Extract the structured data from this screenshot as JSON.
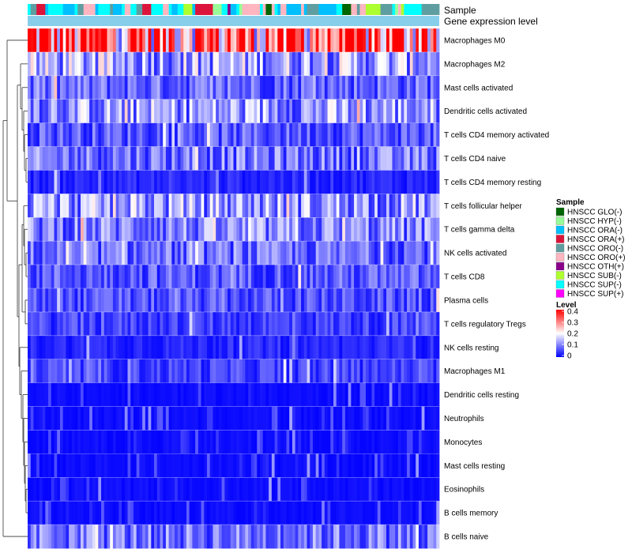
{
  "chart_data": {
    "type": "heatmap",
    "title": "",
    "n_samples": 140,
    "annotation_tracks": [
      "Sample",
      "Gene expression level"
    ],
    "rows": [
      "Macrophages M0",
      "Macrophages M2",
      "Mast cells activated",
      "Dendritic cells activated",
      "T cells CD4 memory activated",
      "T cells CD4 naive",
      "T cells CD4 memory resting",
      "T cells follicular helper",
      "T cells gamma delta",
      "NK cells activated",
      "T cells CD8",
      "Plasma cells",
      "T cells regulatory  Tregs",
      "NK cells resting",
      "Macrophages M1",
      "Dendritic cells resting",
      "Neutrophils",
      "Monocytes",
      "Mast cells resting",
      "Eosinophils",
      "B cells memory",
      "B cells naive"
    ],
    "row_mean_level": [
      0.32,
      0.13,
      0.08,
      0.12,
      0.07,
      0.09,
      0.03,
      0.12,
      0.1,
      0.08,
      0.07,
      0.06,
      0.05,
      0.03,
      0.05,
      0.01,
      0.01,
      0.01,
      0.01,
      0.01,
      0.01,
      0.09
    ],
    "color_scale": {
      "range": [
        0,
        0.4
      ],
      "ticks": [
        0,
        0.1,
        0.2,
        0.3,
        0.4
      ],
      "colors": [
        "#0000ff",
        "#ffffff",
        "#ff0000"
      ]
    },
    "legend_sample": {
      "title": "Sample",
      "entries": [
        {
          "label": "HNSCC GLO(-)",
          "color": "#006400"
        },
        {
          "label": "HNSCC HYP(-)",
          "color": "#98fb98"
        },
        {
          "label": "HNSCC ORA(-)",
          "color": "#00bfff"
        },
        {
          "label": "HNSCC ORA(+)",
          "color": "#dc143c"
        },
        {
          "label": "HNSCC ORO(-)",
          "color": "#5f9ea0"
        },
        {
          "label": "HNSCC ORO(+)",
          "color": "#ffb6c1"
        },
        {
          "label": "HNSCC OTH(+)",
          "color": "#8b008b"
        },
        {
          "label": "HNSCC SUB(-)",
          "color": "#adff2f"
        },
        {
          "label": "HNSCC SUP(-)",
          "color": "#00ffff"
        },
        {
          "label": "HNSCC SUP(+)",
          "color": "#ff00ff"
        }
      ]
    },
    "legend_level": {
      "title": "Level",
      "ticks": [
        "0.4",
        "0.3",
        "0.2",
        "0.1",
        "0"
      ]
    },
    "gene_expression_level_color": "#87ceeb"
  }
}
